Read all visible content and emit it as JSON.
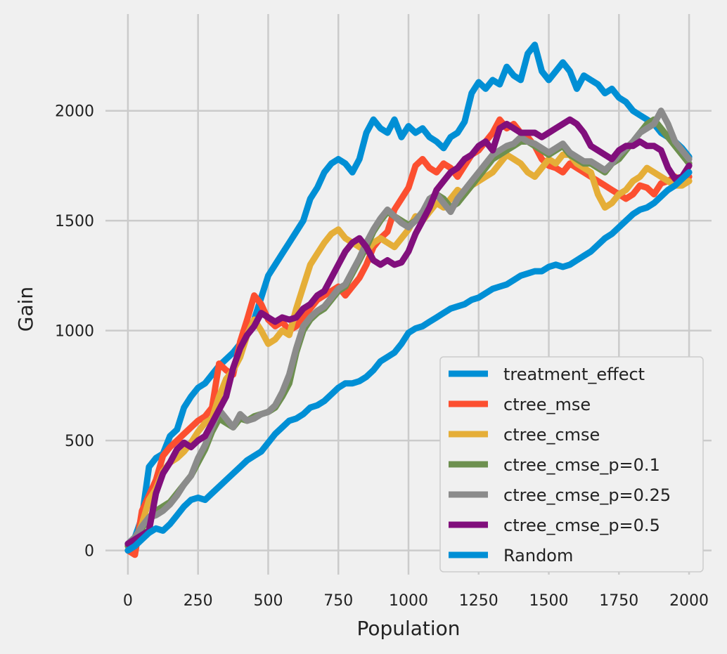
{
  "chart_data": {
    "type": "line",
    "title": "",
    "xlabel": "Population",
    "ylabel": "Gain",
    "xlim": [
      -80,
      2080
    ],
    "ylim": [
      -110,
      2440
    ],
    "xticks": [
      0,
      250,
      500,
      750,
      1000,
      1250,
      1500,
      1750,
      2000
    ],
    "yticks": [
      0,
      500,
      1000,
      1500,
      2000
    ],
    "grid": true,
    "legend_position": "lower-right",
    "series": [
      {
        "name": "treatment_effect",
        "color": "#008fd5",
        "x": [
          0,
          25,
          50,
          75,
          100,
          125,
          150,
          175,
          200,
          225,
          250,
          275,
          300,
          325,
          350,
          375,
          400,
          425,
          450,
          475,
          500,
          525,
          550,
          575,
          600,
          625,
          650,
          675,
          700,
          725,
          750,
          775,
          800,
          825,
          850,
          875,
          900,
          925,
          950,
          975,
          1000,
          1025,
          1050,
          1075,
          1100,
          1125,
          1150,
          1175,
          1200,
          1225,
          1250,
          1275,
          1300,
          1325,
          1350,
          1375,
          1400,
          1425,
          1450,
          1475,
          1500,
          1525,
          1550,
          1575,
          1600,
          1625,
          1650,
          1675,
          1700,
          1725,
          1750,
          1775,
          1800,
          1825,
          1850,
          1875,
          1900,
          1925,
          1950,
          1975,
          2000
        ],
        "y": [
          30,
          60,
          150,
          380,
          420,
          440,
          520,
          550,
          650,
          700,
          740,
          760,
          800,
          840,
          870,
          900,
          940,
          980,
          1050,
          1150,
          1250,
          1300,
          1350,
          1400,
          1450,
          1500,
          1600,
          1650,
          1720,
          1760,
          1780,
          1760,
          1720,
          1780,
          1900,
          1960,
          1920,
          1900,
          1960,
          1880,
          1930,
          1900,
          1920,
          1880,
          1860,
          1830,
          1880,
          1900,
          1950,
          2080,
          2130,
          2100,
          2140,
          2120,
          2200,
          2160,
          2140,
          2260,
          2300,
          2180,
          2140,
          2180,
          2220,
          2180,
          2100,
          2160,
          2140,
          2120,
          2080,
          2100,
          2060,
          2040,
          2000,
          1980,
          1960,
          1940,
          1900,
          1880,
          1860,
          1830,
          1790
        ]
      },
      {
        "name": "ctree_mse",
        "color": "#fc4f30",
        "x": [
          0,
          25,
          50,
          75,
          100,
          125,
          150,
          175,
          200,
          225,
          250,
          275,
          300,
          325,
          350,
          375,
          400,
          425,
          450,
          475,
          500,
          525,
          550,
          575,
          600,
          625,
          650,
          675,
          700,
          725,
          750,
          775,
          800,
          825,
          850,
          875,
          900,
          925,
          950,
          975,
          1000,
          1025,
          1050,
          1075,
          1100,
          1125,
          1150,
          1175,
          1200,
          1225,
          1250,
          1275,
          1300,
          1325,
          1350,
          1375,
          1400,
          1425,
          1450,
          1475,
          1500,
          1525,
          1550,
          1575,
          1600,
          1625,
          1650,
          1675,
          1700,
          1725,
          1750,
          1775,
          1800,
          1825,
          1850,
          1875,
          1900,
          1925,
          1950,
          1975,
          2000
        ],
        "y": [
          0,
          -20,
          180,
          250,
          320,
          430,
          470,
          500,
          530,
          560,
          590,
          610,
          650,
          850,
          820,
          800,
          950,
          1050,
          1160,
          1120,
          1050,
          1020,
          1040,
          1000,
          1020,
          1060,
          1100,
          1140,
          1160,
          1180,
          1200,
          1160,
          1200,
          1240,
          1300,
          1380,
          1420,
          1450,
          1550,
          1600,
          1650,
          1750,
          1780,
          1740,
          1720,
          1760,
          1740,
          1700,
          1750,
          1800,
          1820,
          1860,
          1900,
          1960,
          1920,
          1940,
          1900,
          1880,
          1840,
          1780,
          1750,
          1740,
          1720,
          1760,
          1740,
          1720,
          1700,
          1680,
          1660,
          1640,
          1620,
          1600,
          1620,
          1660,
          1650,
          1620,
          1670,
          1680,
          1700,
          1680,
          1700
        ]
      },
      {
        "name": "ctree_cmse",
        "color": "#e5ae38",
        "x": [
          0,
          25,
          50,
          75,
          100,
          125,
          150,
          175,
          200,
          225,
          250,
          275,
          300,
          325,
          350,
          375,
          400,
          425,
          450,
          475,
          500,
          525,
          550,
          575,
          600,
          625,
          650,
          675,
          700,
          725,
          750,
          775,
          800,
          825,
          850,
          875,
          900,
          925,
          950,
          975,
          1000,
          1025,
          1050,
          1075,
          1100,
          1125,
          1150,
          1175,
          1200,
          1225,
          1250,
          1275,
          1300,
          1325,
          1350,
          1375,
          1400,
          1425,
          1450,
          1475,
          1500,
          1525,
          1550,
          1575,
          1600,
          1625,
          1650,
          1675,
          1700,
          1725,
          1750,
          1775,
          1800,
          1825,
          1850,
          1875,
          1900,
          1925,
          1950,
          1975,
          2000
        ],
        "y": [
          20,
          40,
          120,
          230,
          280,
          360,
          400,
          420,
          450,
          490,
          540,
          580,
          600,
          700,
          780,
          820,
          880,
          980,
          1050,
          1000,
          940,
          960,
          1000,
          980,
          1100,
          1200,
          1300,
          1350,
          1400,
          1440,
          1460,
          1420,
          1400,
          1380,
          1360,
          1400,
          1420,
          1400,
          1380,
          1420,
          1460,
          1520,
          1500,
          1540,
          1580,
          1560,
          1600,
          1640,
          1620,
          1660,
          1680,
          1700,
          1720,
          1760,
          1800,
          1780,
          1760,
          1720,
          1700,
          1740,
          1780,
          1760,
          1800,
          1800,
          1760,
          1740,
          1720,
          1620,
          1560,
          1580,
          1620,
          1640,
          1680,
          1700,
          1740,
          1720,
          1700,
          1680,
          1660,
          1660,
          1680
        ]
      },
      {
        "name": "ctree_cmse_p=0.1",
        "color": "#6d904f",
        "x": [
          0,
          25,
          50,
          75,
          100,
          125,
          150,
          175,
          200,
          225,
          250,
          275,
          300,
          325,
          350,
          375,
          400,
          425,
          450,
          475,
          500,
          525,
          550,
          575,
          600,
          625,
          650,
          675,
          700,
          725,
          750,
          775,
          800,
          825,
          850,
          875,
          900,
          925,
          950,
          975,
          1000,
          1025,
          1050,
          1075,
          1100,
          1125,
          1150,
          1175,
          1200,
          1225,
          1250,
          1275,
          1300,
          1325,
          1350,
          1375,
          1400,
          1425,
          1450,
          1475,
          1500,
          1525,
          1550,
          1575,
          1600,
          1625,
          1650,
          1675,
          1700,
          1725,
          1750,
          1775,
          1800,
          1825,
          1850,
          1875,
          1900,
          1925,
          1950,
          1975,
          2000
        ],
        "y": [
          20,
          50,
          100,
          150,
          180,
          200,
          220,
          260,
          300,
          340,
          400,
          460,
          540,
          600,
          580,
          560,
          600,
          590,
          610,
          620,
          630,
          650,
          700,
          760,
          900,
          1000,
          1050,
          1080,
          1100,
          1140,
          1180,
          1200,
          1260,
          1320,
          1380,
          1450,
          1500,
          1540,
          1520,
          1500,
          1480,
          1500,
          1540,
          1580,
          1620,
          1600,
          1560,
          1580,
          1620,
          1660,
          1700,
          1740,
          1780,
          1800,
          1820,
          1840,
          1860,
          1860,
          1840,
          1820,
          1800,
          1820,
          1840,
          1800,
          1780,
          1760,
          1760,
          1740,
          1720,
          1760,
          1780,
          1820,
          1860,
          1900,
          1940,
          1960,
          1920,
          1880,
          1840,
          1800,
          1760
        ]
      },
      {
        "name": "ctree_cmse_p=0.25",
        "color": "#8b8b8b",
        "x": [
          0,
          25,
          50,
          75,
          100,
          125,
          150,
          175,
          200,
          225,
          250,
          275,
          300,
          325,
          350,
          375,
          400,
          425,
          450,
          475,
          500,
          525,
          550,
          575,
          600,
          625,
          650,
          675,
          700,
          725,
          750,
          775,
          800,
          825,
          850,
          875,
          900,
          925,
          950,
          975,
          1000,
          1025,
          1050,
          1075,
          1100,
          1125,
          1150,
          1175,
          1200,
          1225,
          1250,
          1275,
          1300,
          1325,
          1350,
          1375,
          1400,
          1425,
          1450,
          1475,
          1500,
          1525,
          1550,
          1575,
          1600,
          1625,
          1650,
          1675,
          1700,
          1725,
          1750,
          1775,
          1800,
          1825,
          1850,
          1875,
          1900,
          1925,
          1950,
          1975,
          2000
        ],
        "y": [
          30,
          60,
          110,
          150,
          160,
          180,
          210,
          250,
          300,
          340,
          420,
          480,
          560,
          640,
          600,
          560,
          620,
          590,
          600,
          620,
          630,
          660,
          720,
          800,
          920,
          1020,
          1060,
          1090,
          1110,
          1150,
          1190,
          1210,
          1270,
          1330,
          1400,
          1460,
          1510,
          1550,
          1520,
          1490,
          1470,
          1500,
          1540,
          1600,
          1620,
          1580,
          1540,
          1600,
          1640,
          1680,
          1720,
          1760,
          1800,
          1820,
          1840,
          1850,
          1880,
          1860,
          1850,
          1830,
          1810,
          1830,
          1850,
          1810,
          1790,
          1770,
          1770,
          1750,
          1730,
          1760,
          1800,
          1830,
          1860,
          1900,
          1920,
          1940,
          2000,
          1940,
          1860,
          1820,
          1780
        ]
      },
      {
        "name": "ctree_cmse_p=0.5",
        "color": "#810f7c",
        "x": [
          0,
          25,
          50,
          75,
          100,
          125,
          150,
          175,
          200,
          225,
          250,
          275,
          300,
          325,
          350,
          375,
          400,
          425,
          450,
          475,
          500,
          525,
          550,
          575,
          600,
          625,
          650,
          675,
          700,
          725,
          750,
          775,
          800,
          825,
          850,
          875,
          900,
          925,
          950,
          975,
          1000,
          1025,
          1050,
          1075,
          1100,
          1125,
          1150,
          1175,
          1200,
          1225,
          1250,
          1275,
          1300,
          1325,
          1350,
          1375,
          1400,
          1425,
          1450,
          1475,
          1500,
          1525,
          1550,
          1575,
          1600,
          1625,
          1650,
          1675,
          1700,
          1725,
          1750,
          1775,
          1800,
          1825,
          1850,
          1875,
          1900,
          1925,
          1950,
          1975,
          2000
        ],
        "y": [
          30,
          50,
          70,
          90,
          260,
          350,
          400,
          460,
          490,
          470,
          500,
          520,
          580,
          640,
          700,
          830,
          920,
          980,
          1020,
          1080,
          1060,
          1040,
          1060,
          1050,
          1060,
          1100,
          1120,
          1160,
          1180,
          1240,
          1300,
          1360,
          1400,
          1420,
          1380,
          1320,
          1300,
          1320,
          1300,
          1310,
          1360,
          1440,
          1500,
          1560,
          1640,
          1680,
          1720,
          1740,
          1780,
          1800,
          1840,
          1860,
          1820,
          1920,
          1940,
          1920,
          1900,
          1900,
          1900,
          1880,
          1900,
          1920,
          1940,
          1960,
          1940,
          1900,
          1840,
          1820,
          1800,
          1780,
          1820,
          1840,
          1840,
          1860,
          1840,
          1840,
          1820,
          1740,
          1690,
          1700,
          1750
        ]
      },
      {
        "name": "Random",
        "color": "#008fd5",
        "x": [
          0,
          25,
          50,
          75,
          100,
          125,
          150,
          175,
          200,
          225,
          250,
          275,
          300,
          325,
          350,
          375,
          400,
          425,
          450,
          475,
          500,
          525,
          550,
          575,
          600,
          625,
          650,
          675,
          700,
          725,
          750,
          775,
          800,
          825,
          850,
          875,
          900,
          925,
          950,
          975,
          1000,
          1025,
          1050,
          1075,
          1100,
          1125,
          1150,
          1175,
          1200,
          1225,
          1250,
          1275,
          1300,
          1325,
          1350,
          1375,
          1400,
          1425,
          1450,
          1475,
          1500,
          1525,
          1550,
          1575,
          1600,
          1625,
          1650,
          1675,
          1700,
          1725,
          1750,
          1775,
          1800,
          1825,
          1850,
          1875,
          1900,
          1925,
          1950,
          1975,
          2000
        ],
        "y": [
          0,
          20,
          50,
          80,
          100,
          90,
          120,
          160,
          200,
          230,
          240,
          230,
          260,
          290,
          320,
          350,
          380,
          410,
          430,
          450,
          490,
          530,
          560,
          590,
          600,
          620,
          650,
          660,
          680,
          710,
          740,
          760,
          760,
          770,
          790,
          820,
          860,
          880,
          900,
          940,
          990,
          1010,
          1020,
          1040,
          1060,
          1080,
          1100,
          1110,
          1120,
          1140,
          1150,
          1170,
          1190,
          1200,
          1210,
          1230,
          1250,
          1260,
          1270,
          1270,
          1290,
          1300,
          1290,
          1300,
          1320,
          1340,
          1360,
          1390,
          1420,
          1440,
          1470,
          1500,
          1530,
          1550,
          1560,
          1580,
          1610,
          1640,
          1660,
          1690,
          1720
        ]
      }
    ]
  }
}
